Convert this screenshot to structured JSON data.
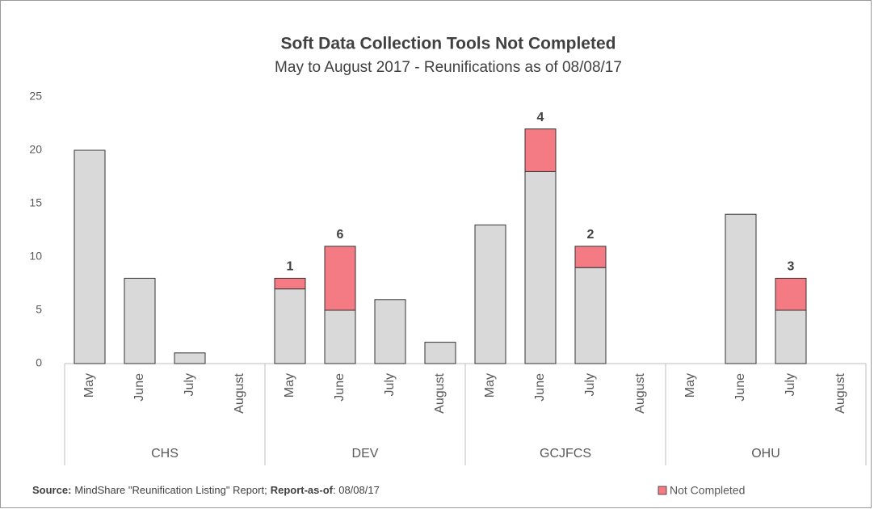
{
  "chart_data": {
    "type": "bar",
    "stacked": true,
    "title": "Soft Data Collection Tools Not Completed",
    "subtitle": "May to August 2017 - Reunifications as of 08/08/17",
    "groups": [
      "CHS",
      "DEV",
      "GCJFCS",
      "OHU"
    ],
    "categories": [
      "May",
      "June",
      "July",
      "August",
      "May",
      "June",
      "July",
      "August",
      "May",
      "June",
      "July",
      "August",
      "May",
      "June",
      "July",
      "August"
    ],
    "series": [
      {
        "color": "#d9d9d9",
        "values": [
          20,
          8,
          1,
          null,
          7,
          5,
          6,
          2,
          13,
          18,
          9,
          null,
          null,
          14,
          5,
          null
        ]
      },
      {
        "name": "Not Completed",
        "color": "#f47b84",
        "data_labels": true,
        "values": [
          null,
          null,
          null,
          null,
          1,
          6,
          null,
          null,
          null,
          4,
          2,
          null,
          null,
          null,
          3,
          null
        ]
      }
    ],
    "ylim": [
      0,
      25
    ],
    "yticks": [
      0,
      5,
      10,
      15,
      20,
      25
    ],
    "grid": false,
    "legend": "bottom-right",
    "footnote": [
      {
        "text": "Source:",
        "bold": true
      },
      {
        "text": "MindShare \"Reunification Listing\" Report;",
        "bold": false
      },
      {
        "text": "Report-as-of",
        "bold": true
      },
      {
        "text": ": 08/08/17",
        "bold": false
      }
    ]
  }
}
